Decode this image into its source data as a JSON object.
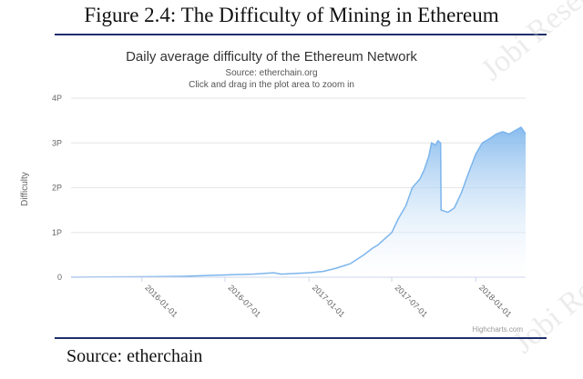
{
  "figure": {
    "title": "Figure 2.4: The Difficulty of Mining in Ethereum",
    "source": "Source:  etherchain"
  },
  "watermark": "Jobi Research",
  "chart_data": {
    "type": "area",
    "title": "Daily average difficulty of the Ethereum Network",
    "subtitle": "Source: etherchain.org",
    "subtitle2": "Click and drag in the plot area to zoom in",
    "ylabel": "Difficulty",
    "xlabel": "",
    "credit": "Highcharts.com",
    "x_range": [
      "2015-07-30",
      "2018-04-20"
    ],
    "ylim": [
      0,
      4
    ],
    "y_ticks": [
      {
        "value": 0,
        "label": "0"
      },
      {
        "value": 1,
        "label": "1P"
      },
      {
        "value": 2,
        "label": "2P"
      },
      {
        "value": 3,
        "label": "3P"
      },
      {
        "value": 4,
        "label": "4P"
      }
    ],
    "x_ticks": [
      "2016-01-01",
      "2016-07-01",
      "2017-01-01",
      "2017-07-01",
      "2018-01-01"
    ],
    "grid": true,
    "legend": "none",
    "colors": {
      "line": "#7cb5ec",
      "fill_top": "#7cb5ec",
      "fill_bottom": "#ffffff"
    },
    "series": [
      {
        "x": [
          "2015-07-30",
          "2015-10-01",
          "2016-01-01",
          "2016-04-01",
          "2016-07-01",
          "2016-09-01",
          "2016-10-15",
          "2016-11-01",
          "2017-01-01",
          "2017-02-01",
          "2017-03-01",
          "2017-04-01",
          "2017-05-01",
          "2017-05-20",
          "2017-06-01",
          "2017-06-15",
          "2017-07-01",
          "2017-07-15",
          "2017-08-01",
          "2017-08-15",
          "2017-09-01",
          "2017-09-10",
          "2017-09-20",
          "2017-09-26",
          "2017-10-05",
          "2017-10-10",
          "2017-10-16",
          "2017-10-17",
          "2017-11-01",
          "2017-11-15",
          "2017-12-01",
          "2017-12-15",
          "2018-01-01",
          "2018-01-15",
          "2018-02-01",
          "2018-02-15",
          "2018-03-01",
          "2018-03-15",
          "2018-04-01",
          "2018-04-10",
          "2018-04-20"
        ],
        "values": [
          0.0,
          0.005,
          0.01,
          0.02,
          0.05,
          0.07,
          0.1,
          0.07,
          0.1,
          0.13,
          0.2,
          0.3,
          0.5,
          0.65,
          0.72,
          0.85,
          1.0,
          1.3,
          1.6,
          2.0,
          2.2,
          2.4,
          2.7,
          3.0,
          2.95,
          3.05,
          3.0,
          1.5,
          1.45,
          1.55,
          1.9,
          2.3,
          2.75,
          3.0,
          3.1,
          3.2,
          3.25,
          3.2,
          3.3,
          3.35,
          3.2
        ]
      }
    ]
  }
}
